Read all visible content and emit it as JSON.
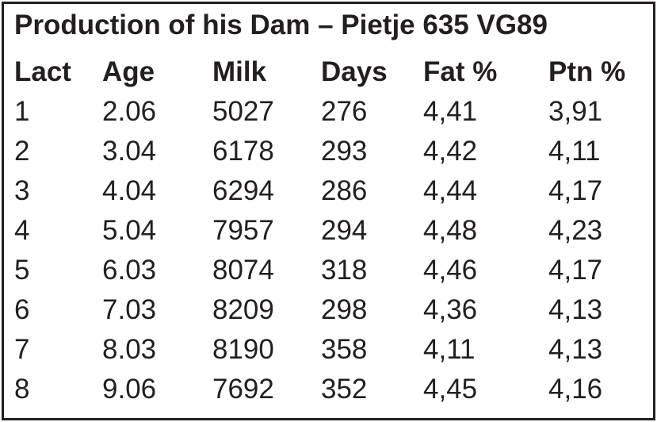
{
  "table": {
    "title": "Production of his Dam – Pietje 635 VG89",
    "headers": [
      "Lact",
      "Age",
      "Milk",
      "Days",
      "Fat %",
      "Ptn %"
    ],
    "rows": [
      [
        "1",
        "2.06",
        "5027",
        "276",
        "4,41",
        "3,91"
      ],
      [
        "2",
        "3.04",
        "6178",
        "293",
        "4,42",
        "4,11"
      ],
      [
        "3",
        "4.04",
        "6294",
        "286",
        "4,44",
        "4,17"
      ],
      [
        "4",
        "5.04",
        "7957",
        "294",
        "4,48",
        "4,23"
      ],
      [
        "5",
        "6.03",
        "8074",
        "318",
        "4,46",
        "4,17"
      ],
      [
        "6",
        "7.03",
        "8209",
        "298",
        "4,36",
        "4,13"
      ],
      [
        "7",
        "8.03",
        "8190",
        "358",
        "4,11",
        "4,13"
      ],
      [
        "8",
        "9.06",
        "7692",
        "352",
        "4,45",
        "4,16"
      ]
    ]
  }
}
